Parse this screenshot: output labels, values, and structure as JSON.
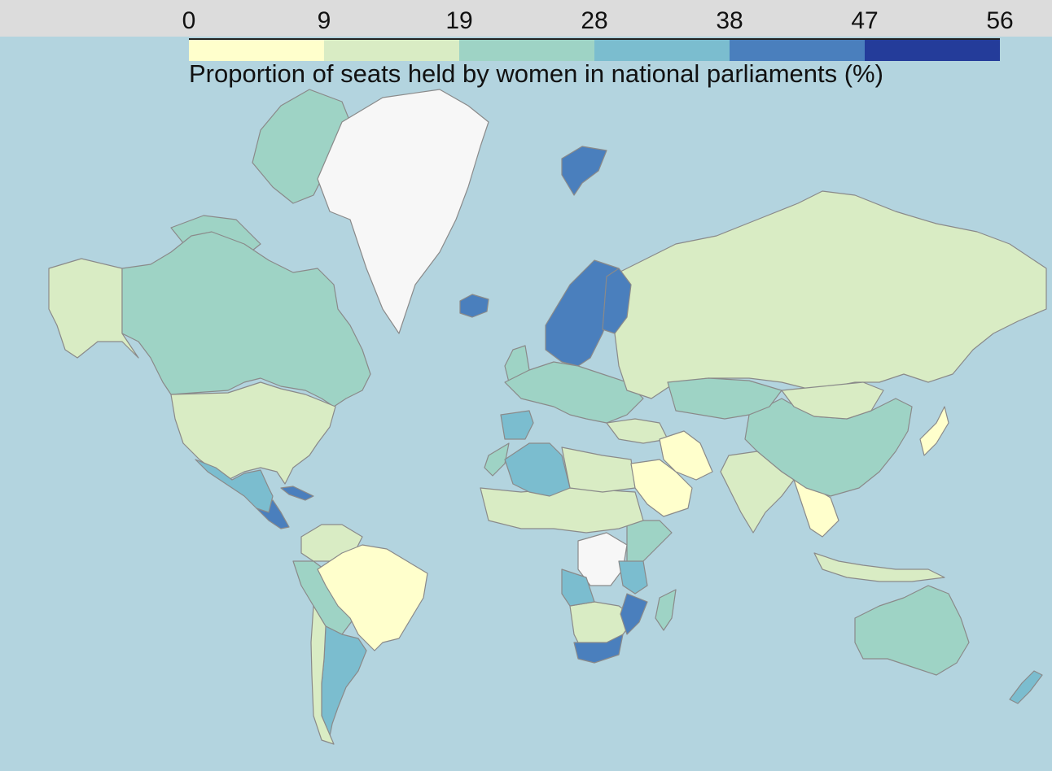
{
  "legend": {
    "title": "Proportion of seats held by women in national parliaments (%)",
    "ticks": [
      "0",
      "9",
      "19",
      "28",
      "38",
      "47",
      "56"
    ],
    "bins": [
      {
        "from": 0,
        "to": 9,
        "color": "#ffffcc"
      },
      {
        "from": 9,
        "to": 19,
        "color": "#d9ecc4"
      },
      {
        "from": 19,
        "to": 28,
        "color": "#9ed3c5"
      },
      {
        "from": 28,
        "to": 38,
        "color": "#7bbdcf"
      },
      {
        "from": 38,
        "to": 47,
        "color": "#4a7fbd"
      },
      {
        "from": 47,
        "to": 56,
        "color": "#243c9a"
      }
    ],
    "no_data_color": "#f7f7f7"
  },
  "ocean_color": "#b3d4df",
  "regions": [
    {
      "name": "Canada",
      "bin": 2
    },
    {
      "name": "United States",
      "bin": 1
    },
    {
      "name": "Mexico",
      "bin": 3
    },
    {
      "name": "Greenland",
      "bin": -1
    },
    {
      "name": "Brazil",
      "bin": 0
    },
    {
      "name": "Argentina",
      "bin": 3
    },
    {
      "name": "Chile",
      "bin": 1
    },
    {
      "name": "Russia",
      "bin": 1
    },
    {
      "name": "China",
      "bin": 2
    },
    {
      "name": "India",
      "bin": 1
    },
    {
      "name": "Australia",
      "bin": 2
    },
    {
      "name": "Sweden",
      "bin": 4
    },
    {
      "name": "Norway",
      "bin": 4
    },
    {
      "name": "Finland",
      "bin": 4
    },
    {
      "name": "Iceland",
      "bin": 4
    },
    {
      "name": "Svalbard",
      "bin": 4
    },
    {
      "name": "South Africa",
      "bin": 4
    },
    {
      "name": "Algeria",
      "bin": 3
    },
    {
      "name": "Spain",
      "bin": 3
    },
    {
      "name": "DR Congo",
      "bin": -1
    },
    {
      "name": "Saudi Arabia",
      "bin": 0
    },
    {
      "name": "Iran",
      "bin": 0
    },
    {
      "name": "Mongolia",
      "bin": 1
    },
    {
      "name": "Kazakhstan",
      "bin": 2
    },
    {
      "name": "Japan",
      "bin": 0
    },
    {
      "name": "New Zealand",
      "bin": 3
    },
    {
      "name": "Egypt",
      "bin": 0
    },
    {
      "name": "Angola",
      "bin": 3
    },
    {
      "name": "Mozambique",
      "bin": 4
    },
    {
      "name": "Tanzania",
      "bin": 3
    },
    {
      "name": "Nicaragua",
      "bin": 4
    },
    {
      "name": "Cuba",
      "bin": 4
    }
  ]
}
